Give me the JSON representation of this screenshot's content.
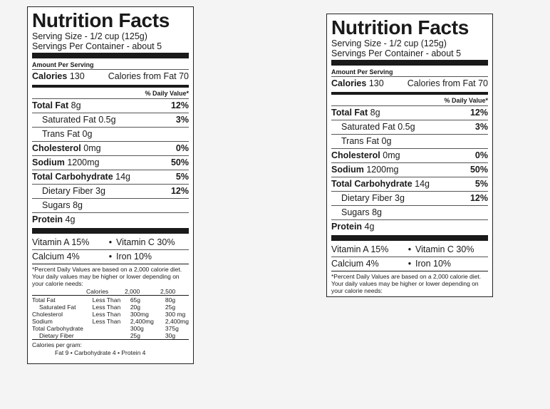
{
  "labels": [
    {
      "title": "Nutrition Facts",
      "serving_size": "Serving Size  -  1/2 cup (125g)",
      "servings_per_container": "Servings Per Container  -  about 5",
      "amount_per_serving": "Amount Per Serving",
      "calories_label": "Calories",
      "calories_value": "130",
      "calories_from_fat": "Calories from Fat 70",
      "daily_value_header": "% Daily Value*",
      "nutrients": {
        "total_fat": {
          "name": "Total Fat",
          "amount": "8g",
          "pct": "12%"
        },
        "saturated_fat": {
          "name": "Saturated Fat",
          "amount": "0.5g",
          "pct": "3%"
        },
        "trans_fat": {
          "name": "Trans Fat",
          "amount": "0g"
        },
        "cholesterol": {
          "name": "Cholesterol",
          "amount": "0mg",
          "pct": "0%"
        },
        "sodium": {
          "name": "Sodium",
          "amount": "1200mg",
          "pct": "50%"
        },
        "total_carb": {
          "name": "Total Carbohydrate",
          "amount": "14g",
          "pct": "5%"
        },
        "dietary_fiber": {
          "name": "Dietary Fiber",
          "amount": "3g",
          "pct": "12%"
        },
        "sugars": {
          "name": "Sugars",
          "amount": "8g"
        },
        "protein": {
          "name": "Protein",
          "amount": "4g"
        }
      },
      "vitamin_a": "Vitamin A 15%",
      "vitamin_c": "Vitamin C 30%",
      "calcium": "Calcium 4%",
      "iron": "Iron 10%",
      "bullet": "•",
      "footnote": "*Percent Daily Values are based on a 2,000 calorie diet. Your daily values may be higher or lower depending on your calorie needs:",
      "footnote_table": {
        "header": [
          "",
          "Calories",
          "2,000",
          "2,500"
        ],
        "rows": [
          [
            "Total Fat",
            "Less Than",
            "65g",
            "80g"
          ],
          [
            "Saturated Fat",
            "Less Than",
            "20g",
            "25g"
          ],
          [
            "Cholesterol",
            "Less Than",
            "300mg",
            "300 mg"
          ],
          [
            "Sodium",
            "Less Than",
            "2,400mg",
            "2,400mg"
          ],
          [
            "Total Carbohydrate",
            "",
            "300g",
            "375g"
          ],
          [
            "Dietary Fiber",
            "",
            "25g",
            "30g"
          ]
        ]
      },
      "calories_per_gram": "Calories per gram:",
      "calories_per_gram_values": "Fat 9  •  Carbohydrate 4  •  Protein 4"
    },
    {
      "title": "Nutrition Facts",
      "serving_size": "Serving Size  -  1/2 cup (125g)",
      "servings_per_container": "Servings Per Container  -  about 5",
      "amount_per_serving": "Amount Per Serving",
      "calories_label": "Calories",
      "calories_value": "130",
      "calories_from_fat": "Calories from Fat 70",
      "daily_value_header": "% Daily Value*",
      "nutrients": {
        "total_fat": {
          "name": "Total Fat",
          "amount": "8g",
          "pct": "12%"
        },
        "saturated_fat": {
          "name": "Saturated Fat",
          "amount": "0.5g",
          "pct": "3%"
        },
        "trans_fat": {
          "name": "Trans Fat",
          "amount": "0g"
        },
        "cholesterol": {
          "name": "Cholesterol",
          "amount": "0mg",
          "pct": "0%"
        },
        "sodium": {
          "name": "Sodium",
          "amount": "1200mg",
          "pct": "50%"
        },
        "total_carb": {
          "name": "Total Carbohydrate",
          "amount": "14g",
          "pct": "5%"
        },
        "dietary_fiber": {
          "name": "Dietary Fiber",
          "amount": "3g",
          "pct": "12%"
        },
        "sugars": {
          "name": "Sugars",
          "amount": "8g"
        },
        "protein": {
          "name": "Protein",
          "amount": "4g"
        }
      },
      "vitamin_a": "Vitamin A 15%",
      "vitamin_c": "Vitamin C 30%",
      "calcium": "Calcium 4%",
      "iron": "Iron 10%",
      "bullet": "•",
      "footnote": "*Percent Daily Values are based on a 2,000 calorie diet. Your daily values may be higher or lower depending on your calorie needs:"
    }
  ]
}
